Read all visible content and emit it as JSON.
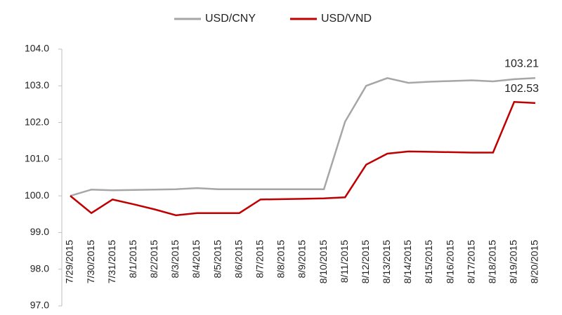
{
  "chart_data": {
    "type": "line",
    "categories": [
      "7/29/2015",
      "7/30/2015",
      "7/31/2015",
      "8/1/2015",
      "8/2/2015",
      "8/3/2015",
      "8/4/2015",
      "8/5/2015",
      "8/6/2015",
      "8/7/2015",
      "8/8/2015",
      "8/9/2015",
      "8/10/2015",
      "8/11/2015",
      "8/12/2015",
      "8/13/2015",
      "8/14/2015",
      "8/15/2015",
      "8/16/2015",
      "8/17/2015",
      "8/18/2015",
      "8/19/2015",
      "8/20/2015"
    ],
    "series": [
      {
        "name": "USD/CNY",
        "color": "#a6a6a6",
        "values": [
          100.0,
          100.17,
          100.15,
          100.16,
          100.17,
          100.18,
          100.21,
          100.18,
          100.18,
          100.18,
          100.18,
          100.18,
          100.18,
          102.02,
          103.0,
          103.21,
          103.08,
          103.11,
          103.13,
          103.15,
          103.12,
          103.18,
          103.21
        ]
      },
      {
        "name": "USD/VND",
        "color": "#c00000",
        "values": [
          100.0,
          99.53,
          99.9,
          99.77,
          99.63,
          99.47,
          99.53,
          99.53,
          99.53,
          99.9,
          99.91,
          99.92,
          99.93,
          99.96,
          100.85,
          101.15,
          101.21,
          101.2,
          101.19,
          101.18,
          101.18,
          102.56,
          102.53
        ]
      }
    ],
    "ylim": [
      97,
      104
    ],
    "yticks": [
      {
        "value": 97,
        "label": "97.0"
      },
      {
        "value": 98,
        "label": "98.0"
      },
      {
        "value": 99,
        "label": "99.0"
      },
      {
        "value": 100,
        "label": "100.0"
      },
      {
        "value": 101,
        "label": "101.0"
      },
      {
        "value": 102,
        "label": "102.0"
      },
      {
        "value": 103,
        "label": "103.0"
      },
      {
        "value": 104,
        "label": "104.0"
      }
    ],
    "grid": false,
    "legend": "top",
    "label_last_point": true
  }
}
